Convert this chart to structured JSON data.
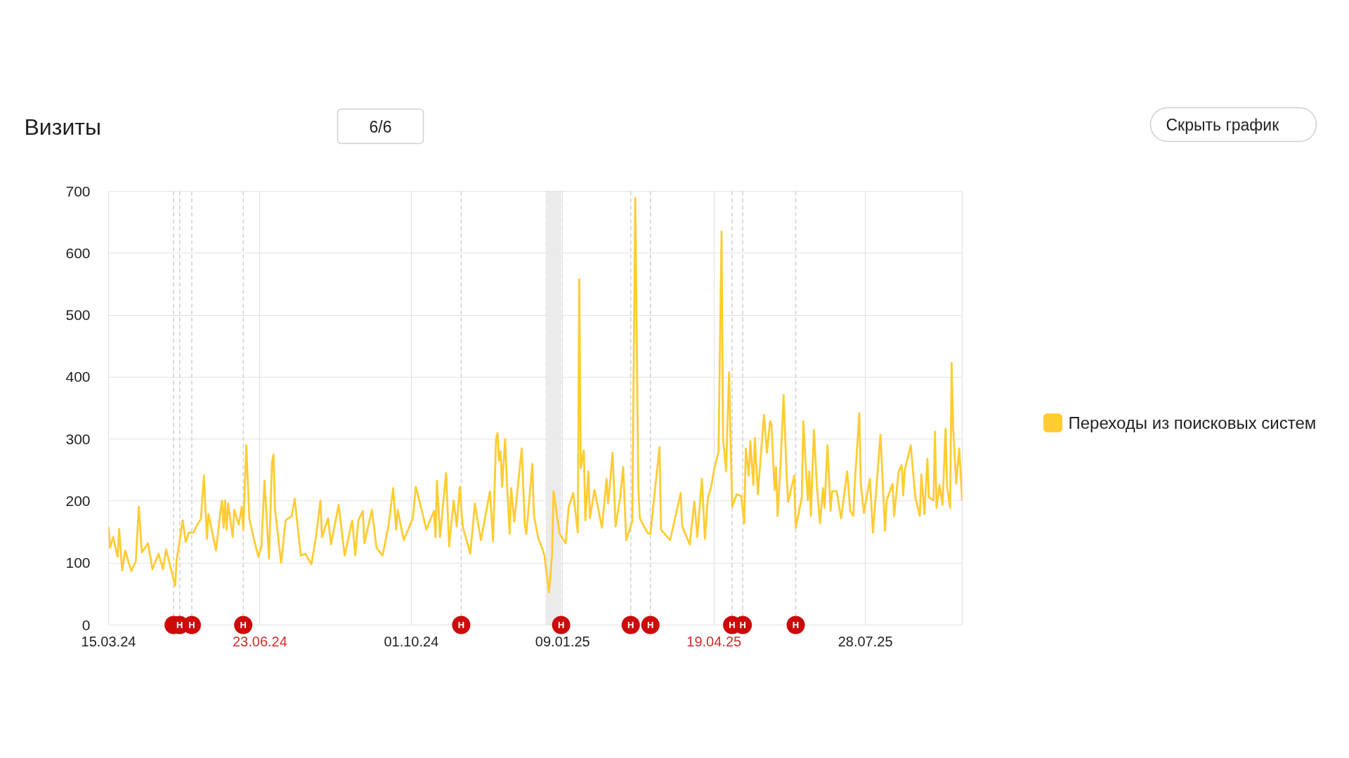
{
  "chart_data": {
    "type": "line",
    "title": "Визиты",
    "annotations": [
      "6/6",
      "Скрыть график"
    ],
    "xlim": [
      "2024-03-15",
      "2025-09-30"
    ],
    "xticks": [
      {
        "value": "2024-03-15",
        "label": "15.03.24"
      },
      {
        "value": "2024-06-23",
        "label": "23.06.24"
      },
      {
        "value": "2024-10-01",
        "label": "01.10.24"
      },
      {
        "value": "2025-01-09",
        "label": "09.01.25"
      },
      {
        "value": "2025-04-19",
        "label": "19.04.25"
      },
      {
        "value": "2025-07-28",
        "label": "28.07.25"
      }
    ],
    "ylim": [
      0,
      700
    ],
    "yticks": [
      0,
      100,
      200,
      300,
      400,
      500,
      600,
      700
    ],
    "grid": true,
    "legend": "right",
    "ref_lines": [
      {
        "axis": "x",
        "value": "2024-04-27",
        "label": null,
        "line_style": "dashed"
      },
      {
        "axis": "x",
        "value": "2024-05-01",
        "label": "Н",
        "line_style": "dashed"
      },
      {
        "axis": "x",
        "value": "2024-05-09",
        "label": "Н",
        "line_style": "dashed"
      },
      {
        "axis": "x",
        "value": "2024-06-12",
        "label": "Н",
        "line_style": "dashed"
      },
      {
        "axis": "x",
        "value": "2024-11-03",
        "label": "Н",
        "line_style": "dashed"
      },
      {
        "axis": "x",
        "value": "2025-02-23",
        "label": "Н",
        "line_style": "dashed"
      },
      {
        "axis": "x",
        "value": "2025-03-08",
        "label": "Н",
        "line_style": "dashed"
      },
      {
        "axis": "x",
        "value": "2025-05-01",
        "label": "Н",
        "line_style": "dashed"
      },
      {
        "axis": "x",
        "value": "2025-05-08",
        "label": "Н",
        "line_style": "dashed"
      },
      {
        "axis": "x",
        "value": "2025-06-12",
        "label": "Н",
        "line_style": "dashed"
      }
    ],
    "bands": [
      {
        "axis": "x",
        "from": "2024-12-29",
        "to": "2025-01-08",
        "label": "Н"
      }
    ],
    "x": [
      "2024-03-15",
      "2024-03-16",
      "2024-03-18",
      "2024-03-21",
      "2024-03-22",
      "2024-03-24",
      "2024-03-26",
      "2024-03-30",
      "2024-04-02",
      "2024-04-04",
      "2024-04-06",
      "2024-04-10",
      "2024-04-13",
      "2024-04-17",
      "2024-04-20",
      "2024-04-22",
      "2024-04-25",
      "2024-04-28",
      "2024-04-29",
      "2024-05-03",
      "2024-05-05",
      "2024-05-07",
      "2024-05-10",
      "2024-05-12",
      "2024-05-15",
      "2024-05-17",
      "2024-05-19",
      "2024-05-20",
      "2024-05-25",
      "2024-05-28",
      "2024-05-29",
      "2024-05-30",
      "2024-05-31",
      "2024-06-01",
      "2024-06-02",
      "2024-06-05",
      "2024-06-06",
      "2024-06-09",
      "2024-06-11",
      "2024-06-12",
      "2024-06-14",
      "2024-06-16",
      "2024-06-19",
      "2024-06-22",
      "2024-06-24",
      "2024-06-26",
      "2024-06-29",
      "2024-07-01",
      "2024-07-02",
      "2024-07-03",
      "2024-07-07",
      "2024-07-10",
      "2024-07-14",
      "2024-07-16",
      "2024-07-20",
      "2024-07-23",
      "2024-07-27",
      "2024-07-30",
      "2024-08-02",
      "2024-08-03",
      "2024-08-07",
      "2024-08-09",
      "2024-08-14",
      "2024-08-18",
      "2024-08-23",
      "2024-08-25",
      "2024-08-27",
      "2024-08-30",
      "2024-08-31",
      "2024-09-05",
      "2024-09-08",
      "2024-09-12",
      "2024-09-16",
      "2024-09-19",
      "2024-09-21",
      "2024-09-22",
      "2024-09-26",
      "2024-10-02",
      "2024-10-04",
      "2024-10-07",
      "2024-10-11",
      "2024-10-16",
      "2024-10-17",
      "2024-10-18",
      "2024-10-20",
      "2024-10-24",
      "2024-10-26",
      "2024-10-29",
      "2024-10-31",
      "2024-11-02",
      "2024-11-04",
      "2024-11-09",
      "2024-11-12",
      "2024-11-16",
      "2024-11-22",
      "2024-11-24",
      "2024-11-26",
      "2024-11-27",
      "2024-11-28",
      "2024-11-29",
      "2024-11-30",
      "2024-12-02",
      "2024-12-03",
      "2024-12-05",
      "2024-12-06",
      "2024-12-08",
      "2024-12-13",
      "2024-12-15",
      "2024-12-16",
      "2024-12-20",
      "2024-12-21",
      "2024-12-24",
      "2024-12-26",
      "2024-12-28",
      "2024-12-31",
      "2025-01-02",
      "2025-01-03",
      "2025-01-07",
      "2025-01-11",
      "2025-01-13",
      "2025-01-16",
      "2025-01-19",
      "2025-01-20",
      "2025-01-21",
      "2025-01-23",
      "2025-01-24",
      "2025-01-26",
      "2025-01-27",
      "2025-01-30",
      "2025-02-04",
      "2025-02-07",
      "2025-02-08",
      "2025-02-09",
      "2025-02-11",
      "2025-02-13",
      "2025-02-16",
      "2025-02-18",
      "2025-02-20",
      "2025-02-24",
      "2025-02-26",
      "2025-02-28",
      "2025-03-01",
      "2025-03-06",
      "2025-03-08",
      "2025-03-14",
      "2025-03-15",
      "2025-03-21",
      "2025-03-28",
      "2025-03-29",
      "2025-04-03",
      "2025-04-06",
      "2025-04-08",
      "2025-04-11",
      "2025-04-13",
      "2025-04-15",
      "2025-04-17",
      "2025-04-19",
      "2025-04-22",
      "2025-04-24",
      "2025-04-25",
      "2025-04-27",
      "2025-04-29",
      "2025-05-01",
      "2025-05-04",
      "2025-05-07",
      "2025-05-09",
      "2025-05-10",
      "2025-05-12",
      "2025-05-13",
      "2025-05-15",
      "2025-05-16",
      "2025-05-18",
      "2025-05-22",
      "2025-05-24",
      "2025-05-26",
      "2025-05-27",
      "2025-05-29",
      "2025-05-30",
      "2025-05-31",
      "2025-06-02",
      "2025-06-04",
      "2025-06-06",
      "2025-06-07",
      "2025-06-11",
      "2025-06-12",
      "2025-06-16",
      "2025-06-17",
      "2025-06-19",
      "2025-06-20",
      "2025-06-21",
      "2025-06-22",
      "2025-06-24",
      "2025-06-26",
      "2025-06-28",
      "2025-06-30",
      "2025-07-01",
      "2025-07-03",
      "2025-07-05",
      "2025-07-06",
      "2025-07-09",
      "2025-07-12",
      "2025-07-16",
      "2025-07-18",
      "2025-07-20",
      "2025-07-21",
      "2025-07-24",
      "2025-07-25",
      "2025-07-27",
      "2025-07-31",
      "2025-08-02",
      "2025-08-07",
      "2025-08-10",
      "2025-08-11",
      "2025-08-15",
      "2025-08-16",
      "2025-08-19",
      "2025-08-21",
      "2025-08-22",
      "2025-08-23",
      "2025-08-27",
      "2025-08-30",
      "2025-09-02",
      "2025-09-03",
      "2025-09-05",
      "2025-09-07",
      "2025-09-08",
      "2025-09-11",
      "2025-09-12",
      "2025-09-13",
      "2025-09-15",
      "2025-09-17",
      "2025-09-19",
      "2025-09-20",
      "2025-09-22",
      "2025-09-23",
      "2025-09-24",
      "2025-09-26",
      "2025-09-28",
      "2025-09-30"
    ],
    "series": [
      {
        "name": "Переходы из поисковых систем",
        "color": "#ffcc33",
        "values": [
          157,
          125,
          142,
          110,
          155,
          88,
          120,
          87,
          103,
          191,
          117,
          132,
          90,
          115,
          90,
          122,
          93,
          63,
          105,
          169,
          134,
          149,
          149,
          159,
          171,
          241,
          139,
          179,
          120,
          186,
          201,
          157,
          201,
          154,
          196,
          142,
          186,
          162,
          191,
          154,
          290,
          172,
          139,
          110,
          127,
          233,
          107,
          263,
          275,
          186,
          100,
          169,
          176,
          204,
          112,
          115,
          98,
          142,
          201,
          142,
          172,
          130,
          194,
          112,
          169,
          112,
          169,
          184,
          132,
          186,
          125,
          112,
          161,
          221,
          154,
          186,
          137,
          172,
          223,
          194,
          154,
          184,
          142,
          233,
          142,
          245,
          127,
          201,
          159,
          223,
          159,
          115,
          196,
          137,
          216,
          135,
          300,
          310,
          265,
          280,
          223,
          300,
          241,
          147,
          221,
          167,
          285,
          162,
          147,
          260,
          177,
          139,
          127,
          112,
          53,
          112,
          216,
          147,
          132,
          191,
          213,
          149,
          558,
          253,
          282,
          169,
          248,
          172,
          218,
          157,
          236,
          196,
          221,
          278,
          159,
          206,
          255,
          137,
          167,
          689,
          223,
          172,
          149,
          147,
          287,
          154,
          137,
          213,
          159,
          130,
          199,
          142,
          236,
          139,
          206,
          221,
          250,
          280,
          635,
          300,
          248,
          408,
          191,
          211,
          208,
          164,
          285,
          241,
          297,
          226,
          302,
          211,
          339,
          278,
          329,
          324,
          218,
          255,
          176,
          260,
          371,
          241,
          199,
          241,
          157,
          206,
          329,
          243,
          201,
          248,
          176,
          315,
          223,
          164,
          221,
          189,
          290,
          184,
          216,
          216,
          172,
          248,
          184,
          176,
          228,
          342,
          228,
          181,
          236,
          149,
          307,
          152,
          201,
          228,
          176,
          248,
          258,
          209,
          250,
          290,
          206,
          176,
          243,
          179,
          268,
          206,
          201,
          312,
          189,
          226,
          194,
          317,
          223,
          189,
          423,
          319,
          228,
          285,
          201
        ]
      }
    ]
  }
}
